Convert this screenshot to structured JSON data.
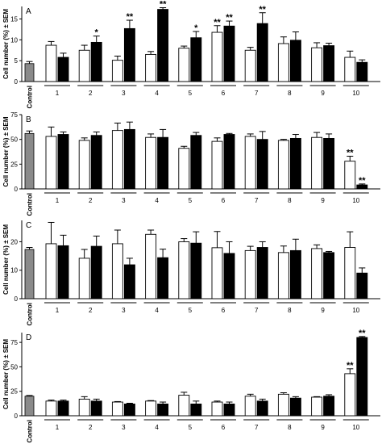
{
  "chart_data": [
    {
      "type": "bar",
      "panel_letter": "A",
      "ylabel": "Cell number (%) ± SEM",
      "ylim": [
        0,
        18
      ],
      "yticks": [
        0,
        5,
        10,
        15
      ],
      "grid": false,
      "control": {
        "label": "Control",
        "value": 4.3,
        "err": 0.5
      },
      "categories": [
        "1",
        "2",
        "3",
        "4",
        "5",
        "6",
        "7",
        "8",
        "9",
        "10"
      ],
      "series": [
        {
          "values": [
            8.7,
            7.5,
            5.1,
            6.5,
            8.0,
            11.8,
            7.5,
            9.1,
            8.1,
            5.8
          ],
          "errors": [
            0.9,
            1.2,
            1.0,
            0.7,
            0.5,
            1.6,
            0.7,
            1.6,
            1.2,
            1.5
          ]
        },
        {
          "values": [
            5.8,
            9.4,
            12.7,
            17.3,
            10.5,
            13.3,
            13.9,
            9.9,
            8.6,
            4.6
          ],
          "errors": [
            1.0,
            1.5,
            2.0,
            0.4,
            1.5,
            1.2,
            2.6,
            2.0,
            0.6,
            0.6
          ]
        }
      ],
      "annotations": [
        {
          "category": "2",
          "series": 1,
          "text": "*"
        },
        {
          "category": "3",
          "series": 1,
          "text": "**"
        },
        {
          "category": "4",
          "series": 1,
          "text": "**"
        },
        {
          "category": "5",
          "series": 1,
          "text": "*"
        },
        {
          "category": "6",
          "series": 0,
          "text": "**"
        },
        {
          "category": "6",
          "series": 1,
          "text": "**"
        },
        {
          "category": "7",
          "series": 1,
          "text": "**"
        }
      ]
    },
    {
      "type": "bar",
      "panel_letter": "B",
      "ylabel": "Cell number (%) ± SEM",
      "ylim": [
        0,
        75
      ],
      "yticks": [
        0,
        25,
        50,
        75
      ],
      "grid": false,
      "control": {
        "label": "Control",
        "value": 56,
        "err": 2.5
      },
      "categories": [
        "1",
        "2",
        "3",
        "4",
        "5",
        "6",
        "7",
        "8",
        "9",
        "10"
      ],
      "series": [
        {
          "values": [
            53,
            49,
            59,
            52,
            41,
            48,
            53,
            49,
            52,
            28
          ],
          "errors": [
            9.5,
            2.5,
            7.5,
            3.5,
            2.0,
            3.5,
            2.5,
            1.0,
            5.0,
            5.0
          ]
        },
        {
          "values": [
            55,
            54,
            60,
            52,
            54,
            55,
            50,
            51,
            51,
            4
          ],
          "errors": [
            2.5,
            3.5,
            7.5,
            8.0,
            3.0,
            1.0,
            8.0,
            4.0,
            4.5,
            1.0
          ]
        }
      ],
      "annotations": [
        {
          "category": "10",
          "series": 0,
          "text": "**"
        },
        {
          "category": "10",
          "series": 1,
          "text": "**"
        }
      ]
    },
    {
      "type": "bar",
      "panel_letter": "C",
      "ylabel": "Cell number (%) ± SEM",
      "ylim": [
        0,
        27.5
      ],
      "yticks": [
        0,
        10,
        20
      ],
      "grid": false,
      "control": {
        "label": "Control",
        "value": 17.3,
        "err": 0.7
      },
      "categories": [
        "1",
        "2",
        "3",
        "4",
        "5",
        "6",
        "7",
        "8",
        "9",
        "10"
      ],
      "series": [
        {
          "values": [
            19.3,
            14.2,
            19.3,
            22.6,
            20.0,
            17.9,
            16.9,
            16.2,
            17.6,
            18.0
          ],
          "errors": [
            7.5,
            3.1,
            4.8,
            1.5,
            1.1,
            5.7,
            1.5,
            2.3,
            1.3,
            5.5
          ]
        },
        {
          "values": [
            18.6,
            18.4,
            11.9,
            14.4,
            19.5,
            15.9,
            18.0,
            16.9,
            16.2,
            9.0
          ],
          "errors": [
            3.7,
            3.6,
            2.3,
            3.0,
            4.0,
            4.1,
            2.0,
            4.0,
            0.4,
            1.8
          ]
        }
      ],
      "annotations": []
    },
    {
      "type": "bar",
      "panel_letter": "D",
      "ylabel": "Cell number (%) ± SEM",
      "ylim": [
        0,
        85
      ],
      "yticks": [
        0,
        25,
        50,
        75
      ],
      "grid": false,
      "control": {
        "label": "Control",
        "value": 20,
        "err": 0.7
      },
      "categories": [
        "1",
        "2",
        "3",
        "4",
        "5",
        "6",
        "7",
        "8",
        "9",
        "10"
      ],
      "series": [
        {
          "values": [
            15,
            17,
            14,
            15,
            21,
            14,
            20,
            22,
            19,
            43
          ],
          "errors": [
            1.0,
            2.5,
            0.5,
            0.5,
            3.0,
            1.0,
            2.0,
            1.5,
            0.5,
            5.0
          ]
        },
        {
          "values": [
            15,
            15,
            12,
            12,
            12,
            12,
            15,
            18,
            20,
            80
          ],
          "errors": [
            1.0,
            2.0,
            0.8,
            2.0,
            3.0,
            2.0,
            2.0,
            1.5,
            1.5,
            1.0
          ]
        }
      ],
      "annotations": [
        {
          "category": "10",
          "series": 0,
          "text": "**"
        },
        {
          "category": "10",
          "series": 1,
          "text": "**"
        }
      ]
    }
  ],
  "colors": {
    "control_fill": "#8a8a8a",
    "series0_fill": "#ffffff",
    "series1_fill": "#000000",
    "stroke": "#000000"
  }
}
